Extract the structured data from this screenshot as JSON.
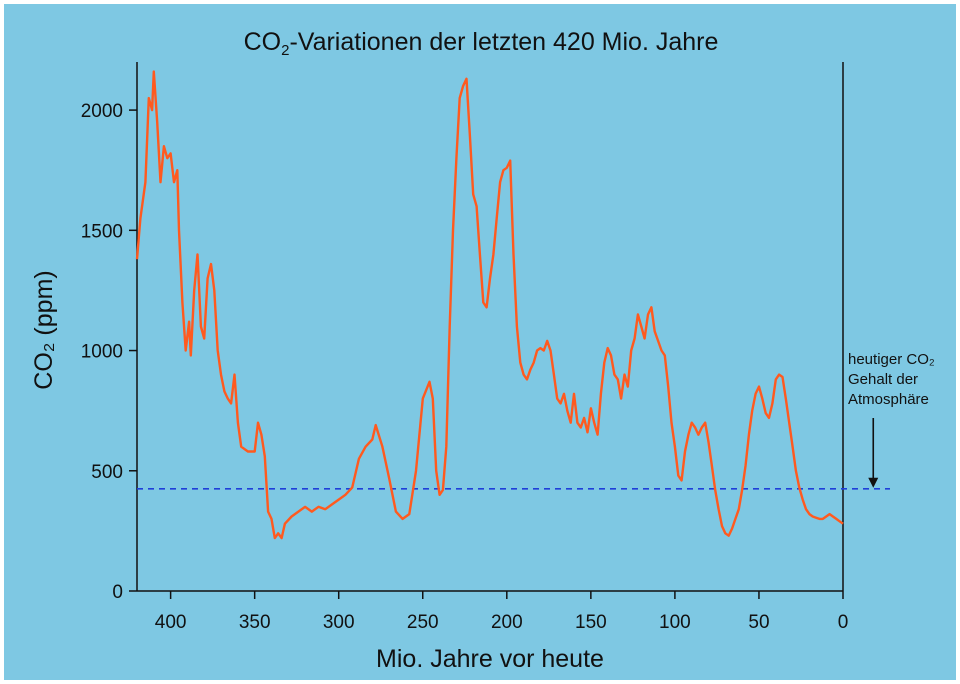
{
  "chart_data": {
    "type": "line",
    "title_prefix": "CO",
    "title_sub": "2",
    "title_suffix": "-Variationen der letzten 420 Mio. Jahre",
    "xlabel": "Mio. Jahre vor heute",
    "ylabel": "CO₂ (ppm)",
    "xlim": [
      420,
      0
    ],
    "ylim": [
      0,
      2200
    ],
    "xticks": [
      400,
      350,
      300,
      250,
      200,
      150,
      100,
      50,
      0
    ],
    "yticks": [
      0,
      500,
      1000,
      1500,
      2000
    ],
    "grid": false,
    "reference_line": {
      "y": 425,
      "style": "dashed",
      "color": "#1f3fd9"
    },
    "annotation": {
      "lines": [
        "heutiger CO₂",
        "Gehalt der",
        "Atmosphäre"
      ],
      "arrow_to": {
        "x": -18,
        "y": 425
      }
    },
    "series": [
      {
        "color": "#ff5a1f",
        "points": [
          [
            420,
            1380
          ],
          [
            418,
            1550
          ],
          [
            415,
            1700
          ],
          [
            413,
            2050
          ],
          [
            411,
            2000
          ],
          [
            410,
            2160
          ],
          [
            408,
            1950
          ],
          [
            406,
            1700
          ],
          [
            404,
            1850
          ],
          [
            402,
            1800
          ],
          [
            400,
            1820
          ],
          [
            398,
            1700
          ],
          [
            396,
            1750
          ],
          [
            395,
            1500
          ],
          [
            393,
            1200
          ],
          [
            391,
            1000
          ],
          [
            389,
            1120
          ],
          [
            388,
            980
          ],
          [
            386,
            1250
          ],
          [
            384,
            1400
          ],
          [
            382,
            1100
          ],
          [
            380,
            1050
          ],
          [
            378,
            1300
          ],
          [
            376,
            1360
          ],
          [
            374,
            1250
          ],
          [
            372,
            1000
          ],
          [
            370,
            900
          ],
          [
            368,
            830
          ],
          [
            366,
            800
          ],
          [
            364,
            780
          ],
          [
            362,
            900
          ],
          [
            360,
            700
          ],
          [
            358,
            600
          ],
          [
            354,
            580
          ],
          [
            350,
            580
          ],
          [
            348,
            700
          ],
          [
            346,
            650
          ],
          [
            344,
            560
          ],
          [
            342,
            330
          ],
          [
            340,
            300
          ],
          [
            338,
            220
          ],
          [
            336,
            240
          ],
          [
            334,
            220
          ],
          [
            332,
            280
          ],
          [
            328,
            310
          ],
          [
            324,
            330
          ],
          [
            320,
            350
          ],
          [
            316,
            330
          ],
          [
            312,
            350
          ],
          [
            308,
            340
          ],
          [
            304,
            360
          ],
          [
            300,
            380
          ],
          [
            296,
            400
          ],
          [
            292,
            430
          ],
          [
            288,
            550
          ],
          [
            284,
            600
          ],
          [
            280,
            630
          ],
          [
            278,
            690
          ],
          [
            274,
            600
          ],
          [
            270,
            470
          ],
          [
            266,
            330
          ],
          [
            262,
            300
          ],
          [
            258,
            320
          ],
          [
            254,
            500
          ],
          [
            250,
            800
          ],
          [
            246,
            870
          ],
          [
            244,
            800
          ],
          [
            242,
            500
          ],
          [
            240,
            400
          ],
          [
            238,
            420
          ],
          [
            236,
            600
          ],
          [
            234,
            1100
          ],
          [
            232,
            1500
          ],
          [
            230,
            1800
          ],
          [
            228,
            2050
          ],
          [
            226,
            2100
          ],
          [
            224,
            2130
          ],
          [
            222,
            1900
          ],
          [
            220,
            1650
          ],
          [
            218,
            1600
          ],
          [
            216,
            1400
          ],
          [
            214,
            1200
          ],
          [
            212,
            1180
          ],
          [
            210,
            1300
          ],
          [
            208,
            1400
          ],
          [
            206,
            1550
          ],
          [
            204,
            1700
          ],
          [
            202,
            1750
          ],
          [
            200,
            1760
          ],
          [
            198,
            1790
          ],
          [
            196,
            1400
          ],
          [
            194,
            1100
          ],
          [
            192,
            950
          ],
          [
            190,
            900
          ],
          [
            188,
            880
          ],
          [
            186,
            920
          ],
          [
            184,
            950
          ],
          [
            182,
            1000
          ],
          [
            180,
            1010
          ],
          [
            178,
            1000
          ],
          [
            176,
            1040
          ],
          [
            174,
            1000
          ],
          [
            172,
            900
          ],
          [
            170,
            800
          ],
          [
            168,
            780
          ],
          [
            166,
            820
          ],
          [
            164,
            750
          ],
          [
            162,
            700
          ],
          [
            160,
            820
          ],
          [
            158,
            700
          ],
          [
            156,
            680
          ],
          [
            154,
            720
          ],
          [
            152,
            660
          ],
          [
            150,
            760
          ],
          [
            148,
            700
          ],
          [
            146,
            650
          ],
          [
            144,
            820
          ],
          [
            142,
            950
          ],
          [
            140,
            1010
          ],
          [
            138,
            980
          ],
          [
            136,
            900
          ],
          [
            134,
            880
          ],
          [
            132,
            800
          ],
          [
            130,
            900
          ],
          [
            128,
            850
          ],
          [
            126,
            1000
          ],
          [
            124,
            1050
          ],
          [
            122,
            1150
          ],
          [
            120,
            1100
          ],
          [
            118,
            1050
          ],
          [
            116,
            1150
          ],
          [
            114,
            1180
          ],
          [
            112,
            1080
          ],
          [
            110,
            1040
          ],
          [
            108,
            1000
          ],
          [
            106,
            980
          ],
          [
            104,
            850
          ],
          [
            102,
            700
          ],
          [
            100,
            600
          ],
          [
            98,
            480
          ],
          [
            96,
            460
          ],
          [
            94,
            580
          ],
          [
            92,
            650
          ],
          [
            90,
            700
          ],
          [
            88,
            680
          ],
          [
            86,
            650
          ],
          [
            84,
            680
          ],
          [
            82,
            700
          ],
          [
            80,
            620
          ],
          [
            78,
            520
          ],
          [
            76,
            420
          ],
          [
            74,
            340
          ],
          [
            72,
            270
          ],
          [
            70,
            240
          ],
          [
            68,
            230
          ],
          [
            66,
            260
          ],
          [
            64,
            300
          ],
          [
            62,
            340
          ],
          [
            60,
            420
          ],
          [
            58,
            520
          ],
          [
            56,
            650
          ],
          [
            54,
            750
          ],
          [
            52,
            820
          ],
          [
            50,
            850
          ],
          [
            48,
            800
          ],
          [
            46,
            740
          ],
          [
            44,
            720
          ],
          [
            42,
            780
          ],
          [
            40,
            880
          ],
          [
            38,
            900
          ],
          [
            36,
            890
          ],
          [
            34,
            800
          ],
          [
            32,
            700
          ],
          [
            30,
            600
          ],
          [
            28,
            500
          ],
          [
            26,
            430
          ],
          [
            24,
            380
          ],
          [
            22,
            340
          ],
          [
            20,
            320
          ],
          [
            18,
            310
          ],
          [
            16,
            305
          ],
          [
            14,
            300
          ],
          [
            12,
            300
          ],
          [
            10,
            310
          ],
          [
            8,
            320
          ],
          [
            6,
            310
          ],
          [
            4,
            300
          ],
          [
            2,
            290
          ],
          [
            0,
            280
          ]
        ]
      }
    ]
  }
}
